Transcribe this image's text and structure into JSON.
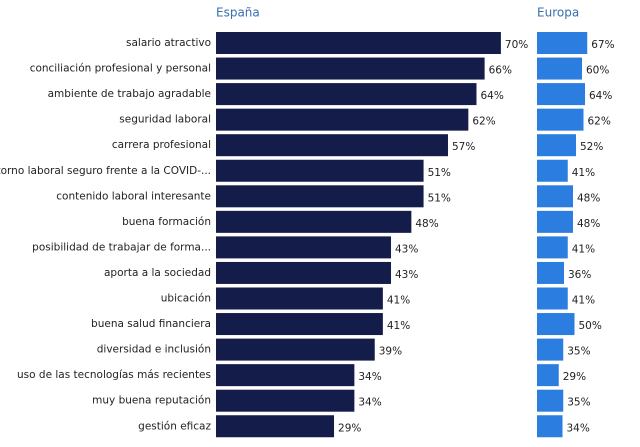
{
  "chart_data": {
    "type": "bar",
    "categories": [
      "salario atractivo",
      "conciliación profesional y personal",
      "ambiente de trabajo agradable",
      "seguridad laboral",
      "carrera profesional",
      "entorno laboral seguro frente a la COVID-...",
      "contenido laboral interesante",
      "buena formación",
      "posibilidad de trabajar de forma...",
      "aporta a la sociedad",
      "ubicación",
      "buena salud financiera",
      "diversidad e inclusión",
      "uso de las tecnologías más recientes",
      "muy buena reputación",
      "gestión eficaz"
    ],
    "series": [
      {
        "name": "España",
        "color": "#141c4a",
        "values": [
          70,
          66,
          64,
          62,
          57,
          51,
          51,
          48,
          43,
          43,
          41,
          41,
          39,
          34,
          34,
          29
        ],
        "value_labels": [
          "70%",
          "66%",
          "64%",
          "62%",
          "57%",
          "51%",
          "51%",
          "48%",
          "43%",
          "43%",
          "41%",
          "41%",
          "39%",
          "34%",
          "34%",
          "29%"
        ]
      },
      {
        "name": "Europa",
        "color": "#2b7de0",
        "values": [
          67,
          60,
          64,
          62,
          52,
          41,
          48,
          48,
          41,
          36,
          41,
          50,
          35,
          29,
          35,
          34
        ],
        "value_labels": [
          "67%",
          "60%",
          "64%",
          "62%",
          "52%",
          "41%",
          "48%",
          "48%",
          "41%",
          "36%",
          "41%",
          "50%",
          "35%",
          "29%",
          "35%",
          "34%"
        ]
      }
    ]
  }
}
